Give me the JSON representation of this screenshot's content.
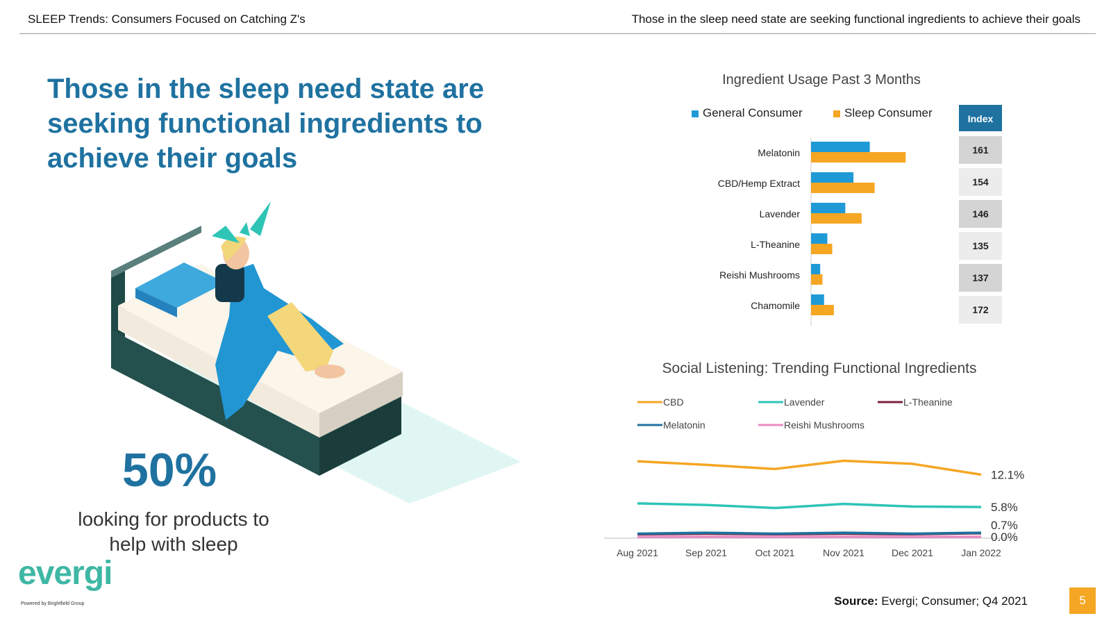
{
  "header": {
    "left_title": "SLEEP Trends: Consumers Focused on Catching Z's",
    "right_title": "Those in the sleep need state are seeking functional ingredients to achieve their goals"
  },
  "headline": "Those in the sleep need state are seeking functional ingredients to achieve their goals",
  "stat": {
    "value": "50%",
    "caption": "looking for products to help with sleep"
  },
  "logo": {
    "text": "evergi",
    "tagline": "Powered by Brightfield Group"
  },
  "source": {
    "label": "Source:",
    "text": "Evergi; Consumer; Q4 2021"
  },
  "page_number": "5",
  "colors": {
    "general": "#1f9ad6",
    "sleep": "#f5a623",
    "index_header": "#1f72a0",
    "headline": "#1f72a0"
  },
  "chart_data": [
    {
      "type": "bar",
      "title": "Ingredient Usage Past 3 Months",
      "categories": [
        "Melatonin",
        "CBD/Hemp Extract",
        "Lavender",
        "L-Theanine",
        "Reishi Mushrooms",
        "Chamomile"
      ],
      "series": [
        {
          "name": "General Consumer",
          "values": [
            18,
            13,
            10.5,
            5,
            2.8,
            4
          ]
        },
        {
          "name": "Sleep Consumer",
          "values": [
            29,
            19.5,
            15.5,
            6.5,
            3.5,
            7
          ]
        }
      ],
      "index_header": "Index",
      "index_values": [
        "161",
        "154",
        "146",
        "135",
        "137",
        "172"
      ]
    },
    {
      "type": "line",
      "title": "Social Listening:  Trending Functional Ingredients",
      "x": [
        "Aug 2021",
        "Sep 2021",
        "Oct 2021",
        "Nov 2021",
        "Dec 2021",
        "Jan 2022"
      ],
      "ylim": [
        0,
        16
      ],
      "series": [
        {
          "name": "CBD",
          "color": "#f5a623",
          "values": [
            14.7,
            14.0,
            13.2,
            14.8,
            14.2,
            12.1
          ],
          "end_label": "12.1%"
        },
        {
          "name": "Lavender",
          "color": "#2ec4b6",
          "values": [
            6.5,
            6.2,
            5.6,
            6.4,
            5.9,
            5.8
          ],
          "end_label": "5.8%"
        },
        {
          "name": "L-Theanine",
          "color": "#7a1f3d",
          "values": [
            0.5,
            0.6,
            0.5,
            0.6,
            0.5,
            0.7
          ],
          "end_label": "0.7%"
        },
        {
          "name": "Melatonin",
          "color": "#1f72a0",
          "values": [
            0.6,
            0.8,
            0.6,
            0.8,
            0.6,
            0.8
          ],
          "end_label": ""
        },
        {
          "name": "Reishi Mushrooms",
          "color": "#e98bc3",
          "values": [
            0.0,
            0.0,
            0.0,
            0.0,
            0.0,
            0.0
          ],
          "end_label": "0.0%"
        }
      ]
    }
  ]
}
